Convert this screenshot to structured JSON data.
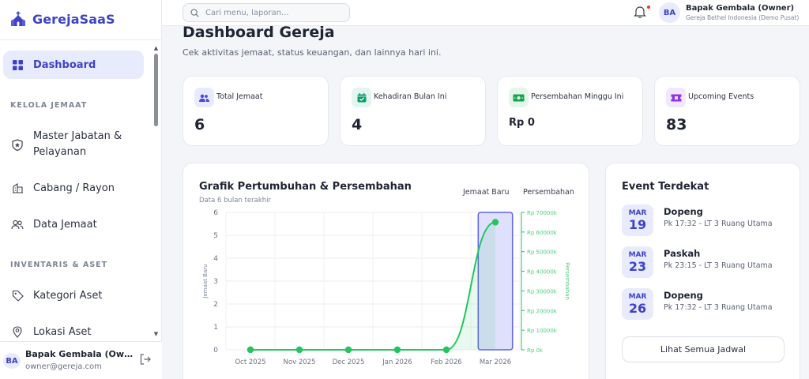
{
  "brand": {
    "name": "GerejaSaaS"
  },
  "sidebar": {
    "items": [
      {
        "label": "Dashboard",
        "icon": "grid-icon",
        "active": true
      },
      {
        "section": "KELOLA JEMAAT"
      },
      {
        "label": "Master Jabatan & Pelayanan",
        "icon": "shield-star-icon"
      },
      {
        "label": "Cabang / Rayon",
        "icon": "building-icon"
      },
      {
        "label": "Data Jemaat",
        "icon": "users-icon"
      },
      {
        "section": "INVENTARIS & ASET"
      },
      {
        "label": "Kategori Aset",
        "icon": "tag-icon"
      },
      {
        "label": "Lokasi Aset",
        "icon": "map-pin-icon"
      }
    ],
    "user": {
      "initials": "BA",
      "name": "Bapak Gembala (Owner)",
      "email": "owner@gereja.com"
    }
  },
  "topbar": {
    "search_placeholder": "Cari menu, laporan...",
    "user": {
      "initials": "BA",
      "name": "Bapak Gembala (Owner)",
      "org": "Gereja Bethel Indonesia (Demo Pusat)"
    }
  },
  "page": {
    "title": "Dashboard Gereja",
    "subtitle": "Cek aktivitas jemaat, status keuangan, dan lainnya hari ini."
  },
  "stats": [
    {
      "label": "Total Jemaat",
      "value": "6",
      "icon": "users-icon",
      "color": "#4f46e5",
      "bg": "#e8ebfb"
    },
    {
      "label": "Kehadiran Bulan Ini",
      "value": "4",
      "icon": "calendar-check-icon",
      "color": "#0f9b6e",
      "bg": "#e2f5ee"
    },
    {
      "label": "Persembahan Minggu Ini",
      "value": "Rp 0",
      "icon": "money-icon",
      "color": "#16a34a",
      "bg": "#e4f6e9"
    },
    {
      "label": "Upcoming Events",
      "value": "83",
      "icon": "ticket-icon",
      "color": "#9333ea",
      "bg": "#f1e8fc"
    }
  ],
  "chart": {
    "title": "Grafik Pertumbuhan & Persembahan",
    "subtitle": "Data 6 bulan terakhir",
    "legend": [
      "Jemaat Baru",
      "Persembahan"
    ]
  },
  "chart_data": {
    "type": "bar",
    "categories": [
      "Oct 2025",
      "Nov 2025",
      "Dec 2025",
      "Jan 2026",
      "Feb 2026",
      "Mar 2026"
    ],
    "series": [
      {
        "name": "Jemaat Baru",
        "type": "bar",
        "values": [
          0,
          0,
          0,
          0,
          0,
          6
        ],
        "color": "#6366f1"
      },
      {
        "name": "Persembahan",
        "type": "line",
        "values": [
          0,
          0,
          0,
          0,
          0,
          65000
        ],
        "color": "#22c55e"
      }
    ],
    "ylabel": "Jemaat Baru",
    "ylabel_right": "Persembahan",
    "ylim": [
      0,
      6
    ],
    "yticks": [
      "0",
      "1",
      "2",
      "3",
      "4",
      "5",
      "6"
    ],
    "ylim_right": [
      0,
      70000
    ],
    "yticks_right": [
      "Rp 0k",
      "Rp 10000k",
      "Rp 20000k",
      "Rp 30000k",
      "Rp 40000k",
      "Rp 50000k",
      "Rp 60000k",
      "Rp 70000k"
    ],
    "grid": true
  },
  "events": {
    "title": "Event Terdekat",
    "items": [
      {
        "month": "MAR",
        "day": "19",
        "name": "Dopeng",
        "detail": "Pk 17:32 - LT 3 Ruang Utama"
      },
      {
        "month": "MAR",
        "day": "23",
        "name": "Paskah",
        "detail": "Pk 23:15 - LT 3 Ruang Utama"
      },
      {
        "month": "MAR",
        "day": "26",
        "name": "Dopeng",
        "detail": "Pk 17:32 - LT 3 Ruang Utama"
      }
    ],
    "all_label": "Lihat Semua Jadwal"
  }
}
